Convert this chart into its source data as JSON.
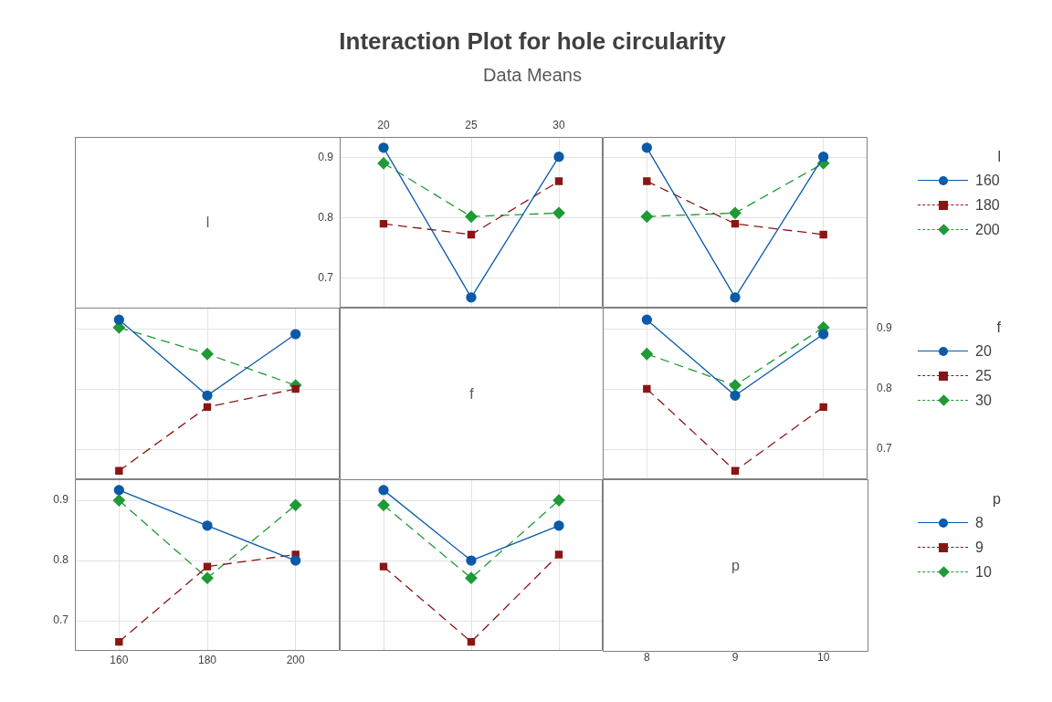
{
  "chart_data": [
    {
      "type": "other",
      "title": "Interaction Plot for hole circularity",
      "subtitle": "Data Means"
    },
    {
      "type": "other",
      "title": "l"
    },
    {
      "type": "line",
      "x": [
        20,
        25,
        30
      ],
      "xlim": [
        17.5,
        32.5
      ],
      "xticks": [
        20,
        25,
        30
      ],
      "ylim": [
        0.65,
        0.935
      ],
      "yticks": [
        0.7,
        0.8,
        0.9
      ],
      "grid": true,
      "series": [
        {
          "name": "160",
          "color": "#0a5aa8",
          "marker": "circle",
          "line_style": "solid",
          "values": [
            0.917,
            0.667,
            0.902
          ]
        },
        {
          "name": "180",
          "color": "#8b1515",
          "marker": "square",
          "line_style": "dashed",
          "values": [
            0.79,
            0.772,
            0.861
          ]
        },
        {
          "name": "200",
          "color": "#1f9a35",
          "marker": "diamond",
          "line_style": "dashed",
          "values": [
            0.891,
            0.802,
            0.808
          ]
        }
      ]
    },
    {
      "type": "line",
      "x": [
        8,
        9,
        10
      ],
      "xlim": [
        7.5,
        10.5
      ],
      "xticks": [
        8,
        9,
        10
      ],
      "ylim": [
        0.65,
        0.935
      ],
      "yticks": [
        0.7,
        0.8,
        0.9
      ],
      "grid": true,
      "tick_labels": false,
      "legend": "right",
      "legend_title": "l",
      "series": [
        {
          "name": "160",
          "color": "#0a5aa8",
          "marker": "circle",
          "line_style": "solid",
          "values": [
            0.917,
            0.667,
            0.902
          ]
        },
        {
          "name": "180",
          "color": "#8b1515",
          "marker": "square",
          "line_style": "dashed",
          "values": [
            0.861,
            0.79,
            0.772
          ]
        },
        {
          "name": "200",
          "color": "#1f9a35",
          "marker": "diamond",
          "line_style": "dashed",
          "values": [
            0.802,
            0.808,
            0.891
          ]
        }
      ]
    },
    {
      "type": "line",
      "x": [
        160,
        180,
        200
      ],
      "xlim": [
        150,
        210
      ],
      "xticks": [
        160,
        180,
        200
      ],
      "ylim": [
        0.65,
        0.935
      ],
      "yticks": [
        0.7,
        0.8,
        0.9
      ],
      "grid": true,
      "tick_labels": false,
      "series": [
        {
          "name": "20",
          "color": "#0a5aa8",
          "marker": "circle",
          "line_style": "solid",
          "values": [
            0.915,
            0.789,
            0.891
          ]
        },
        {
          "name": "25",
          "color": "#8b1515",
          "marker": "square",
          "line_style": "dashed",
          "values": [
            0.664,
            0.77,
            0.8
          ]
        },
        {
          "name": "30",
          "color": "#1f9a35",
          "marker": "diamond",
          "line_style": "dashed",
          "values": [
            0.902,
            0.858,
            0.806
          ]
        }
      ]
    },
    {
      "type": "other",
      "title": "f"
    },
    {
      "type": "line",
      "x": [
        8,
        9,
        10
      ],
      "xlim": [
        7.5,
        10.5
      ],
      "xticks": [
        8,
        9,
        10
      ],
      "y2lim": [
        0.65,
        0.935
      ],
      "y2ticks": [
        0.7,
        0.8,
        0.9
      ],
      "grid": true,
      "legend": "right",
      "legend_title": "f",
      "series": [
        {
          "name": "20",
          "color": "#0a5aa8",
          "marker": "circle",
          "line_style": "solid",
          "axis": "y2",
          "values": [
            0.915,
            0.789,
            0.891
          ]
        },
        {
          "name": "25",
          "color": "#8b1515",
          "marker": "square",
          "line_style": "dashed",
          "axis": "y2",
          "values": [
            0.8,
            0.664,
            0.77
          ]
        },
        {
          "name": "30",
          "color": "#1f9a35",
          "marker": "diamond",
          "line_style": "dashed",
          "axis": "y2",
          "values": [
            0.858,
            0.806,
            0.902
          ]
        }
      ]
    },
    {
      "type": "line",
      "x": [
        160,
        180,
        200
      ],
      "xlim": [
        150,
        210
      ],
      "xticks": [
        160,
        180,
        200
      ],
      "ylim": [
        0.65,
        0.935
      ],
      "yticks": [
        0.7,
        0.8,
        0.9
      ],
      "grid": true,
      "series": [
        {
          "name": "8",
          "color": "#0a5aa8",
          "marker": "circle",
          "line_style": "solid",
          "values": [
            0.917,
            0.858,
            0.8
          ]
        },
        {
          "name": "9",
          "color": "#8b1515",
          "marker": "square",
          "line_style": "dashed",
          "values": [
            0.665,
            0.79,
            0.81
          ]
        },
        {
          "name": "10",
          "color": "#1f9a35",
          "marker": "diamond",
          "line_style": "dashed",
          "values": [
            0.9,
            0.771,
            0.892
          ]
        }
      ]
    },
    {
      "type": "line",
      "x": [
        20,
        25,
        30
      ],
      "xlim": [
        17.5,
        32.5
      ],
      "xticks": [
        20,
        25,
        30
      ],
      "ylim": [
        0.65,
        0.935
      ],
      "yticks": [
        0.7,
        0.8,
        0.9
      ],
      "grid": true,
      "tick_labels": false,
      "legend": "right",
      "legend_title": "p",
      "series": [
        {
          "name": "8",
          "color": "#0a5aa8",
          "marker": "circle",
          "line_style": "solid",
          "values": [
            0.917,
            0.8,
            0.858
          ]
        },
        {
          "name": "9",
          "color": "#8b1515",
          "marker": "square",
          "line_style": "dashed",
          "values": [
            0.79,
            0.665,
            0.81
          ]
        },
        {
          "name": "10",
          "color": "#1f9a35",
          "marker": "diamond",
          "line_style": "dashed",
          "values": [
            0.892,
            0.771,
            0.9
          ]
        }
      ]
    },
    {
      "type": "other",
      "title": "p"
    }
  ]
}
